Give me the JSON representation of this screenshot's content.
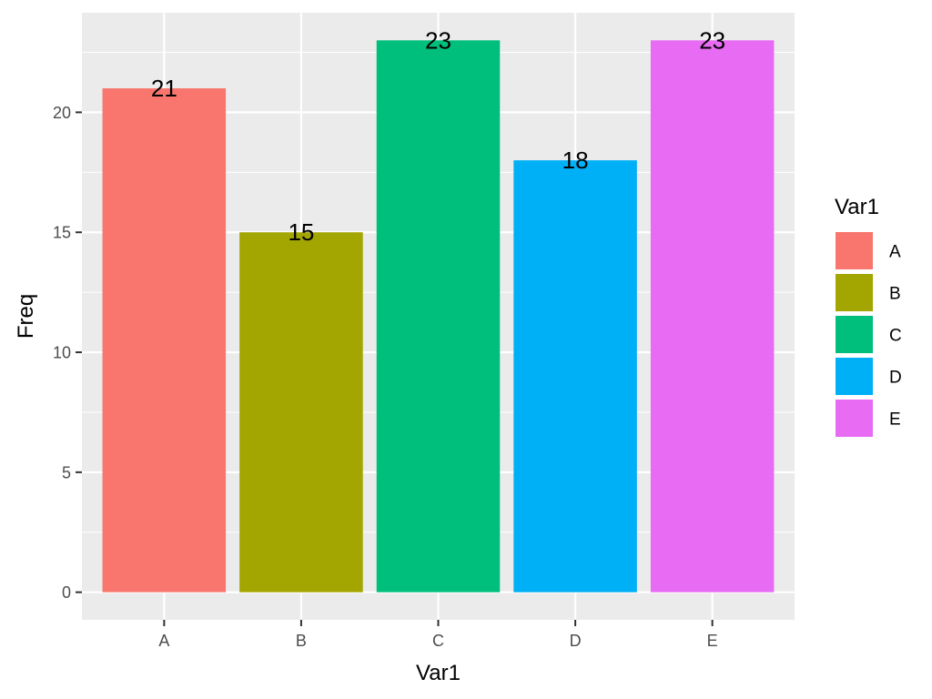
{
  "chart_data": {
    "type": "bar",
    "categories": [
      "A",
      "B",
      "C",
      "D",
      "E"
    ],
    "values": [
      21,
      15,
      23,
      18,
      23
    ],
    "data_labels": [
      "21",
      "15",
      "23",
      "18",
      "23"
    ],
    "colors": [
      "#F8766D",
      "#A3A500",
      "#00BF7D",
      "#00B0F6",
      "#E76BF3"
    ],
    "title": "",
    "xlabel": "Var1",
    "ylabel": "Freq",
    "ylim": [
      -1.15,
      24.15
    ],
    "yticks": [
      0,
      5,
      10,
      15,
      20
    ],
    "ytick_labels": [
      "0",
      "5",
      "10",
      "15",
      "20"
    ],
    "grid": true,
    "panel_background": "#EBEBEB",
    "grid_color": "#FFFFFF",
    "legend": {
      "title": "Var1",
      "entries": [
        "A",
        "B",
        "C",
        "D",
        "E"
      ],
      "placement": "right"
    }
  }
}
